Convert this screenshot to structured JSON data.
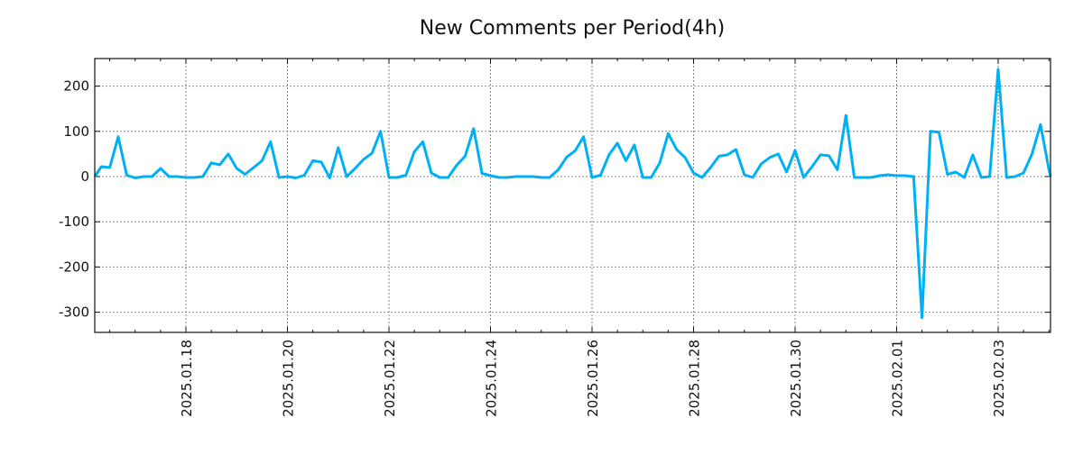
{
  "chart_data": {
    "type": "line",
    "title": "New Comments per Period(4h)",
    "xlabel": "",
    "ylabel": "",
    "x_units": "days since 2025.01.18 00:00",
    "x_start": -1.8333,
    "x_step": 0.16667,
    "xlim": [
      -1.8,
      17.03
    ],
    "ylim": [
      -345,
      262
    ],
    "grid": true,
    "line_color": "#00b0f6",
    "xticks": [
      {
        "value": 0,
        "label": "2025.01.18"
      },
      {
        "value": 2,
        "label": "2025.01.20"
      },
      {
        "value": 4,
        "label": "2025.01.22"
      },
      {
        "value": 6,
        "label": "2025.01.24"
      },
      {
        "value": 8,
        "label": "2025.01.26"
      },
      {
        "value": 10,
        "label": "2025.01.28"
      },
      {
        "value": 12,
        "label": "2025.01.30"
      },
      {
        "value": 14,
        "label": "2025.02.01"
      },
      {
        "value": 16,
        "label": "2025.02.03"
      }
    ],
    "yticks": [
      {
        "value": 200,
        "label": "200"
      },
      {
        "value": 100,
        "label": "100"
      },
      {
        "value": 0,
        "label": "0"
      },
      {
        "value": -100,
        "label": "-100"
      },
      {
        "value": -200,
        "label": "-200"
      },
      {
        "value": -300,
        "label": "-300"
      }
    ],
    "series": [
      {
        "name": "New Comments",
        "values": [
          0,
          22,
          20,
          88,
          3,
          -3,
          0,
          0,
          18,
          0,
          0,
          -2,
          -2,
          0,
          30,
          26,
          50,
          18,
          5,
          20,
          35,
          77,
          -2,
          0,
          -3,
          3,
          35,
          32,
          -3,
          64,
          0,
          18,
          38,
          52,
          100,
          -2,
          -2,
          3,
          55,
          77,
          8,
          -2,
          -2,
          25,
          45,
          106,
          7,
          2,
          -2,
          -2,
          0,
          0,
          0,
          -2,
          -2,
          15,
          43,
          57,
          88,
          -2,
          3,
          48,
          74,
          35,
          70,
          -2,
          -2,
          30,
          95,
          60,
          42,
          8,
          -2,
          20,
          45,
          48,
          60,
          4,
          -2,
          28,
          42,
          50,
          10,
          58,
          -2,
          22,
          48,
          46,
          15,
          135,
          -2,
          -2,
          -2,
          2,
          4,
          2,
          2,
          0,
          -312,
          100,
          98,
          5,
          10,
          -2,
          48,
          -2,
          0,
          237,
          -2,
          0,
          8,
          50,
          115,
          15,
          0
        ]
      }
    ]
  }
}
